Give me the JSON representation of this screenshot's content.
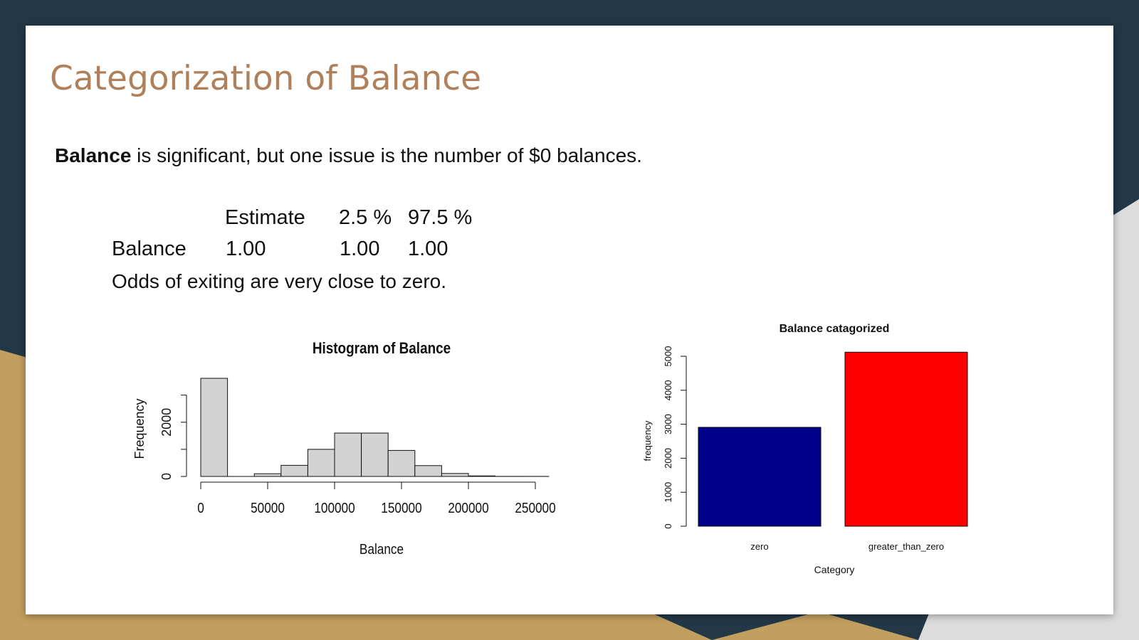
{
  "slide": {
    "title": "Categorization of Balance",
    "intro_bold": "Balance",
    "intro_rest": " is significant, but one issue is the number of $0 balances.",
    "table": {
      "headers": [
        "Estimate",
        "2.5 %",
        "97.5 %"
      ],
      "row_label": "Balance",
      "values": [
        "1.00",
        "1.00",
        "1.00"
      ]
    },
    "note": "Odds of exiting are very close to zero."
  },
  "colors": {
    "background_dark": "#233847",
    "background_gold": "#c19f5e",
    "title": "#b0805a",
    "bar_zero": "#00008b",
    "bar_greater": "#ff0000",
    "hist_fill": "#d3d3d3"
  },
  "chart_data": [
    {
      "type": "bar",
      "title": "Histogram of Balance",
      "xlabel": "Balance",
      "ylabel": "Frequency",
      "bins": [
        {
          "from": 0,
          "to": 20000,
          "count": 3620
        },
        {
          "from": 20000,
          "to": 40000,
          "count": 0
        },
        {
          "from": 40000,
          "to": 60000,
          "count": 100
        },
        {
          "from": 60000,
          "to": 80000,
          "count": 410
        },
        {
          "from": 80000,
          "to": 100000,
          "count": 1000
        },
        {
          "from": 100000,
          "to": 120000,
          "count": 1600
        },
        {
          "from": 120000,
          "to": 140000,
          "count": 1600
        },
        {
          "from": 140000,
          "to": 160000,
          "count": 960
        },
        {
          "from": 160000,
          "to": 180000,
          "count": 400
        },
        {
          "from": 180000,
          "to": 200000,
          "count": 110
        },
        {
          "from": 200000,
          "to": 220000,
          "count": 20
        },
        {
          "from": 220000,
          "to": 240000,
          "count": 3
        },
        {
          "from": 240000,
          "to": 260000,
          "count": 2
        }
      ],
      "xticks": [
        0,
        50000,
        100000,
        150000,
        200000,
        250000
      ],
      "xtick_labels": [
        "0",
        "50000",
        "100000",
        "150000",
        "200000",
        "250000"
      ],
      "yticks": [
        0,
        1000,
        2000,
        3000
      ],
      "ytick_labels": [
        "0",
        "",
        "2000",
        ""
      ],
      "xlim": [
        0,
        260000
      ],
      "ylim": [
        0,
        3620
      ],
      "grid": false
    },
    {
      "type": "bar",
      "title": "Balance catagorized",
      "xlabel": "Category",
      "ylabel": "frequency",
      "categories": [
        "zero",
        "greater_than_zero"
      ],
      "values": [
        2910,
        5120
      ],
      "colors": [
        "#00008b",
        "#ff0000"
      ],
      "yticks": [
        0,
        1000,
        2000,
        3000,
        4000,
        5000
      ],
      "ytick_labels": [
        "0",
        "1000",
        "2000",
        "3000",
        "4000",
        "5000"
      ],
      "ylim": [
        0,
        5120
      ],
      "grid": false
    }
  ]
}
